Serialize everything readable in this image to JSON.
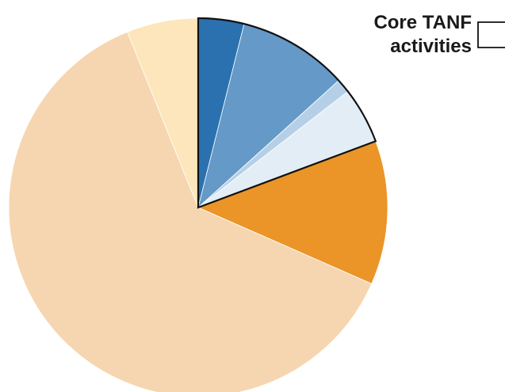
{
  "chart_data": {
    "type": "pie",
    "title": "",
    "start_angle_deg": 0,
    "direction": "clockwise",
    "slices": [
      {
        "value": 3.9,
        "color": "#2b71b0",
        "group": "core"
      },
      {
        "value": 9.4,
        "color": "#6499c8",
        "group": "core"
      },
      {
        "value": 1.2,
        "color": "#b5d0e6",
        "group": "core"
      },
      {
        "value": 4.8,
        "color": "#e3edf6",
        "group": "core"
      },
      {
        "value": 12.3,
        "color": "#eb9428",
        "group": "other"
      },
      {
        "value": 62.3,
        "color": "#f6d6b0",
        "group": "other"
      },
      {
        "value": 6.1,
        "color": "#fde6bb",
        "group": "other"
      }
    ],
    "annotations": [
      {
        "line1": "Core TANF",
        "line2": "activities",
        "applies_to_group": "core"
      }
    ]
  }
}
